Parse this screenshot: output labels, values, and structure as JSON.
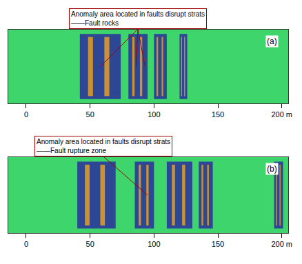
{
  "chart_data": [
    {
      "type": "section",
      "label": "(a)",
      "annotation": [
        "Anomaly area located in faults disrupt strats",
        "——Fault rocks"
      ],
      "annotation_targets": [
        58,
        86,
        93
      ],
      "xlim": [
        -14,
        205
      ],
      "xticks": [
        0,
        50,
        100,
        150,
        {
          "value": 200,
          "label": "200 m"
        }
      ],
      "anomalies": [
        {
          "x0": 42,
          "x1": 74
        },
        {
          "x0": 80,
          "x1": 95
        },
        {
          "x0": 100,
          "x1": 110
        },
        {
          "x0": 120,
          "x1": 126
        }
      ],
      "color": "#3ed66c",
      "tick_labels": "x"
    },
    {
      "type": "section",
      "label": "(b)",
      "annotation": [
        "Anomaly area located in faults disrupt strats",
        "——Fault rupture zone"
      ],
      "annotation_targets": [
        95
      ],
      "xlim": [
        -14,
        205
      ],
      "xticks": [
        0,
        50,
        100,
        150,
        {
          "value": 200,
          "label": "200 m"
        }
      ],
      "anomalies": [
        {
          "x0": 40,
          "x1": 70
        },
        {
          "x0": 85,
          "x1": 100
        },
        {
          "x0": 110,
          "x1": 130
        },
        {
          "x0": 135,
          "x1": 146
        },
        {
          "x0": 194,
          "x1": 201
        }
      ],
      "color": "#3ed66c",
      "tick_labels": "x"
    }
  ]
}
